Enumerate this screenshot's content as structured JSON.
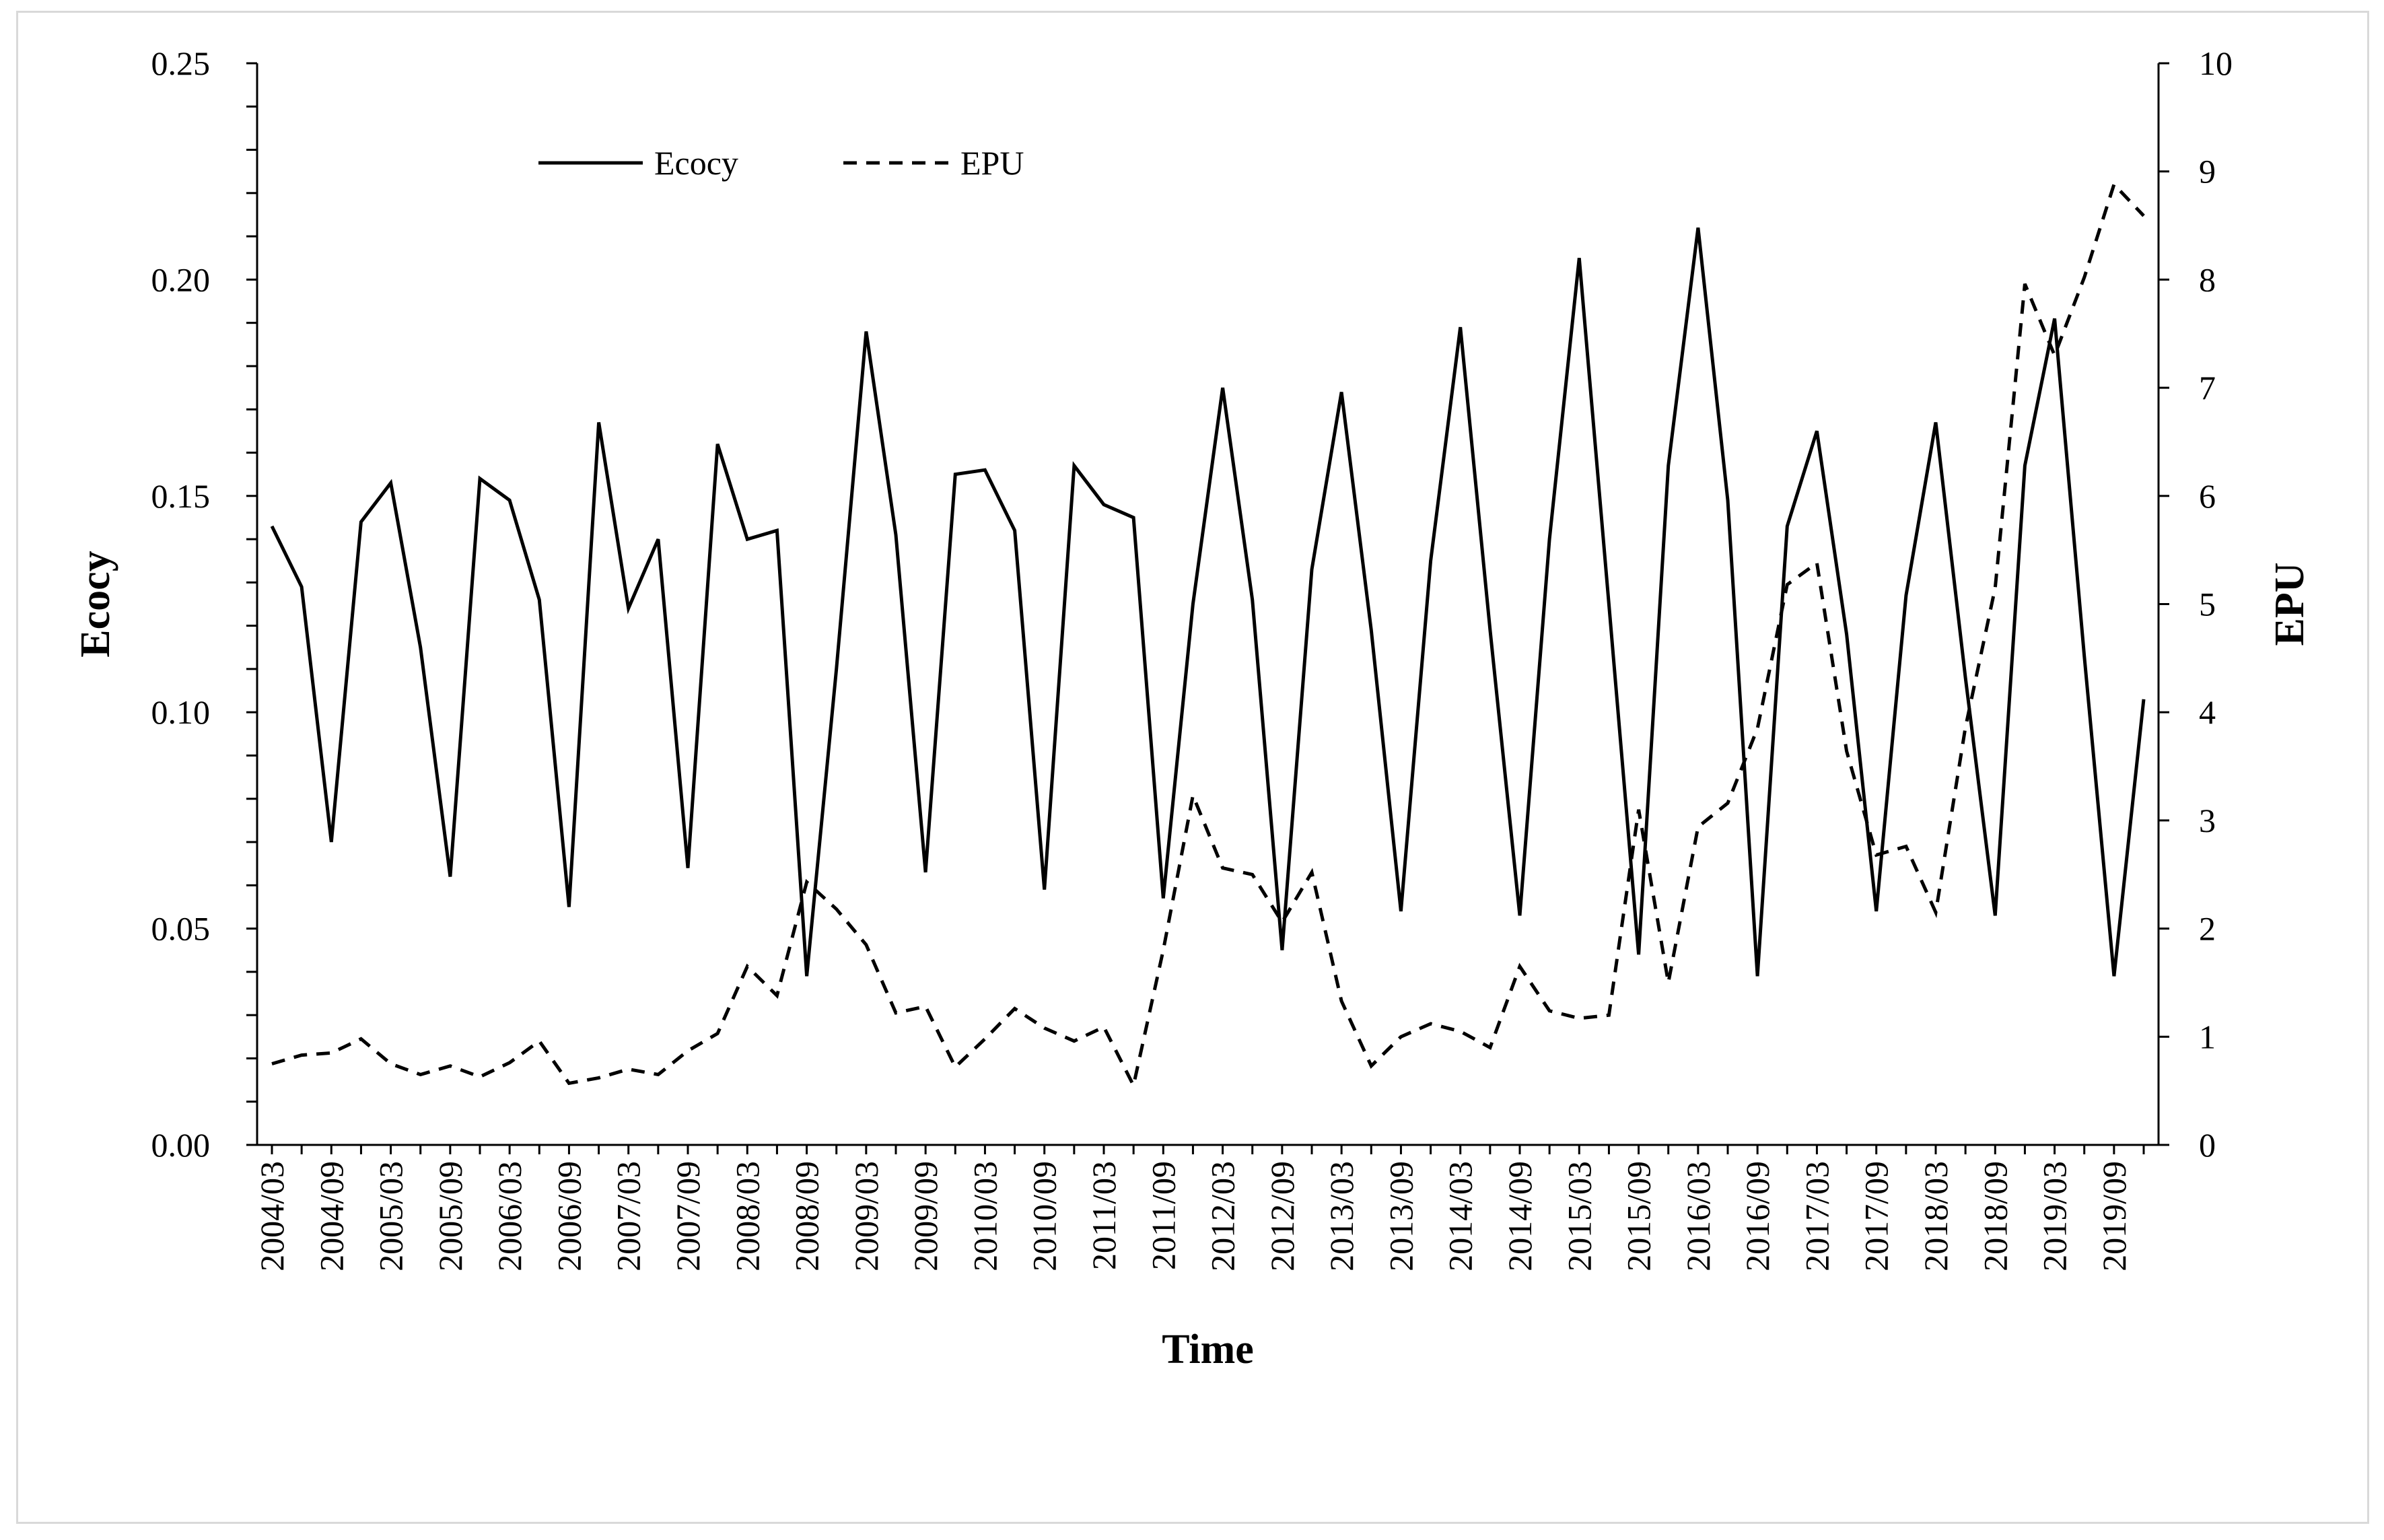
{
  "chart_data": {
    "type": "line",
    "title": "",
    "xlabel": "Time",
    "ylabel_left": "Ecocy",
    "ylabel_right": "EPU",
    "ylim_left": [
      0,
      0.25
    ],
    "ylim_right": [
      0,
      10
    ],
    "yticks_left": [
      "0.00",
      "0.05",
      "0.10",
      "0.15",
      "0.20",
      "0.25"
    ],
    "yticks_right": [
      "0",
      "1",
      "2",
      "3",
      "4",
      "5",
      "6",
      "7",
      "8",
      "9",
      "10"
    ],
    "legend_position": "top-left",
    "grid": false,
    "x": [
      "2004/03",
      "2004/06",
      "2004/09",
      "2004/12",
      "2005/03",
      "2005/06",
      "2005/09",
      "2005/12",
      "2006/03",
      "2006/06",
      "2006/09",
      "2006/12",
      "2007/03",
      "2007/06",
      "2007/09",
      "2007/12",
      "2008/03",
      "2008/06",
      "2008/09",
      "2008/12",
      "2009/03",
      "2009/06",
      "2009/09",
      "2009/12",
      "2010/03",
      "2010/06",
      "2010/09",
      "2010/12",
      "2011/03",
      "2011/06",
      "2011/09",
      "2011/12",
      "2012/03",
      "2012/06",
      "2012/09",
      "2012/12",
      "2013/03",
      "2013/06",
      "2013/09",
      "2013/12",
      "2014/03",
      "2014/06",
      "2014/09",
      "2014/12",
      "2015/03",
      "2015/06",
      "2015/09",
      "2015/12",
      "2016/03",
      "2016/06",
      "2016/09",
      "2016/12",
      "2017/03",
      "2017/06",
      "2017/09",
      "2017/12",
      "2018/03",
      "2018/06",
      "2018/09",
      "2018/12",
      "2019/03",
      "2019/06",
      "2019/09",
      "2019/12"
    ],
    "x_tick_labels": [
      "2004/03",
      "2004/09",
      "2005/03",
      "2005/09",
      "2006/03",
      "2006/09",
      "2007/03",
      "2007/09",
      "2008/03",
      "2008/09",
      "2009/03",
      "2009/09",
      "2010/03",
      "2010/09",
      "2011/03",
      "2011/09",
      "2012/03",
      "2012/09",
      "2013/03",
      "2013/09",
      "2014/03",
      "2014/09",
      "2015/03",
      "2015/09",
      "2016/03",
      "2016/09",
      "2017/03",
      "2017/09",
      "2018/03",
      "2018/09",
      "2019/03",
      "2019/09"
    ],
    "series": [
      {
        "name": "Ecocy",
        "axis": "left",
        "style": "solid",
        "color": "#000000",
        "values": [
          0.143,
          0.129,
          0.07,
          0.144,
          0.153,
          0.115,
          0.062,
          0.154,
          0.149,
          0.126,
          0.055,
          0.167,
          0.124,
          0.14,
          0.064,
          0.162,
          0.14,
          0.142,
          0.039,
          0.11,
          0.188,
          0.141,
          0.063,
          0.155,
          0.156,
          0.142,
          0.059,
          0.157,
          0.148,
          0.145,
          0.057,
          0.125,
          0.175,
          0.126,
          0.045,
          0.133,
          0.174,
          0.119,
          0.054,
          0.135,
          0.189,
          0.119,
          0.053,
          0.14,
          0.205,
          0.125,
          0.044,
          0.157,
          0.212,
          0.149,
          0.039,
          0.143,
          0.165,
          0.118,
          0.054,
          0.127,
          0.167,
          0.108,
          0.053,
          0.157,
          0.191,
          0.113,
          0.039,
          0.103
        ]
      },
      {
        "name": "EPU",
        "axis": "right",
        "style": "dashed",
        "color": "#000000",
        "values": [
          0.75,
          0.83,
          0.85,
          0.98,
          0.75,
          0.65,
          0.73,
          0.63,
          0.76,
          0.96,
          0.57,
          0.62,
          0.7,
          0.65,
          0.87,
          1.03,
          1.65,
          1.38,
          2.43,
          2.18,
          1.85,
          1.22,
          1.28,
          0.72,
          0.98,
          1.26,
          1.08,
          0.96,
          1.09,
          0.55,
          1.8,
          3.23,
          2.56,
          2.5,
          2.06,
          2.52,
          1.33,
          0.73,
          1.0,
          1.12,
          1.05,
          0.9,
          1.65,
          1.24,
          1.17,
          1.2,
          3.1,
          1.5,
          2.94,
          3.16,
          3.85,
          5.18,
          5.38,
          3.64,
          2.68,
          2.76,
          2.15,
          3.86,
          5.15,
          7.96,
          7.3,
          8.02,
          8.88,
          8.59
        ]
      }
    ]
  }
}
